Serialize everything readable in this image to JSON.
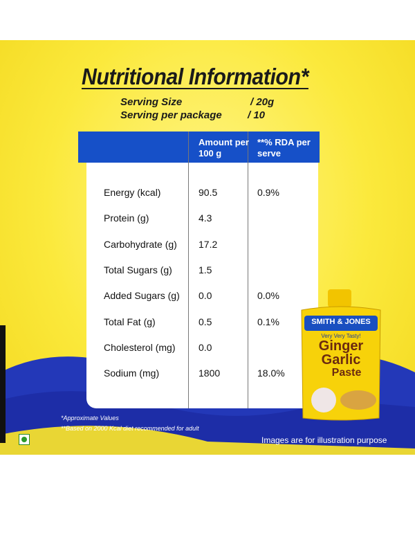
{
  "title": "Nutritional Information*",
  "serving": [
    {
      "label": "Serving Size",
      "value": "/ 20g"
    },
    {
      "label": "Serving per package",
      "value": "/ 10"
    }
  ],
  "table": {
    "header": [
      "Amount per 100 g",
      "**% RDA per serve"
    ],
    "rows": [
      {
        "label": "Energy (kcal)",
        "amount": "90.5",
        "rda": "0.9%"
      },
      {
        "label": "Protein (g)",
        "amount": "4.3"
      },
      {
        "label": "Carbohydrate (g)",
        "amount": "17.2"
      },
      {
        "label": "Total Sugars (g)",
        "amount": "1.5"
      },
      {
        "label": "Added Sugars (g)",
        "amount": "0.0",
        "rda": "0.0%"
      },
      {
        "label": "Total Fat (g)",
        "amount": "0.5",
        "rda": "0.1%"
      },
      {
        "label": "Cholesterol (mg)",
        "amount": "0.0"
      },
      {
        "label": "Sodium (mg)",
        "amount": "1800",
        "rda": "18.0%"
      }
    ]
  },
  "footnotes": [
    "*Approximate Values",
    "**Based on 2000 Kcal diet recommended for adult"
  ],
  "disclaimer": "Images are for illustration purpose",
  "product": {
    "brand": "SMITH & JONES",
    "tagline": "Very Very Tasty!",
    "name": [
      "Ginger",
      "Garlic",
      "Paste"
    ]
  }
}
